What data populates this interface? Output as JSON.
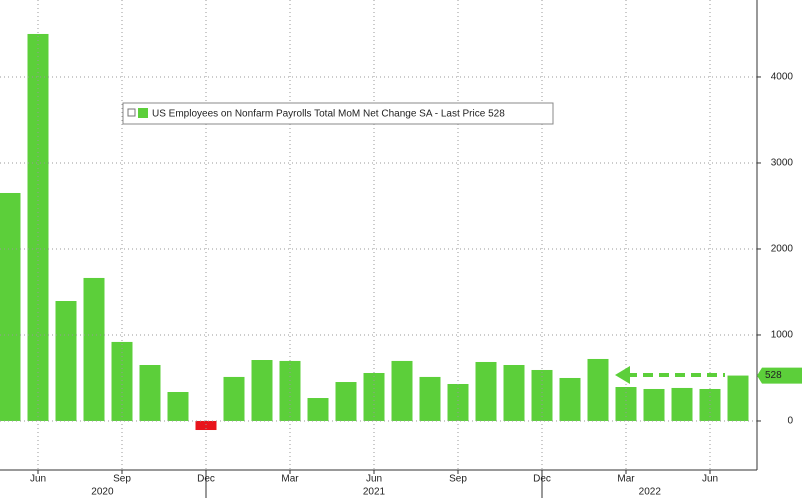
{
  "chart_data": {
    "type": "bar",
    "categories": [
      null,
      "Jun",
      null,
      null,
      "Sep",
      null,
      null,
      "Dec",
      null,
      null,
      "Mar",
      null,
      null,
      "Jun",
      null,
      null,
      "Sep",
      null,
      null,
      "Dec",
      null,
      null,
      "Mar",
      null,
      null,
      "Jun",
      null
    ],
    "x_groups": [
      "2020",
      "2021",
      "2022"
    ],
    "series": [
      {
        "name": "US Employees on Nonfarm Payrolls Total MoM Net Change SA - Last Price 528",
        "color": "#5ccf3a",
        "negative_color": "#e8141c",
        "values": [
          2651,
          4500,
          1395,
          1663,
          919,
          651,
          337,
          -105,
          512,
          709,
          698,
          267,
          453,
          558,
          698,
          512,
          430,
          686,
          651,
          593,
          500,
          721,
          395,
          372,
          384,
          372,
          528
        ]
      }
    ],
    "ylim": [
      -570,
      4895
    ],
    "yticks": [
      0,
      1000,
      2000,
      3000,
      4000
    ],
    "grid": true
  }
}
